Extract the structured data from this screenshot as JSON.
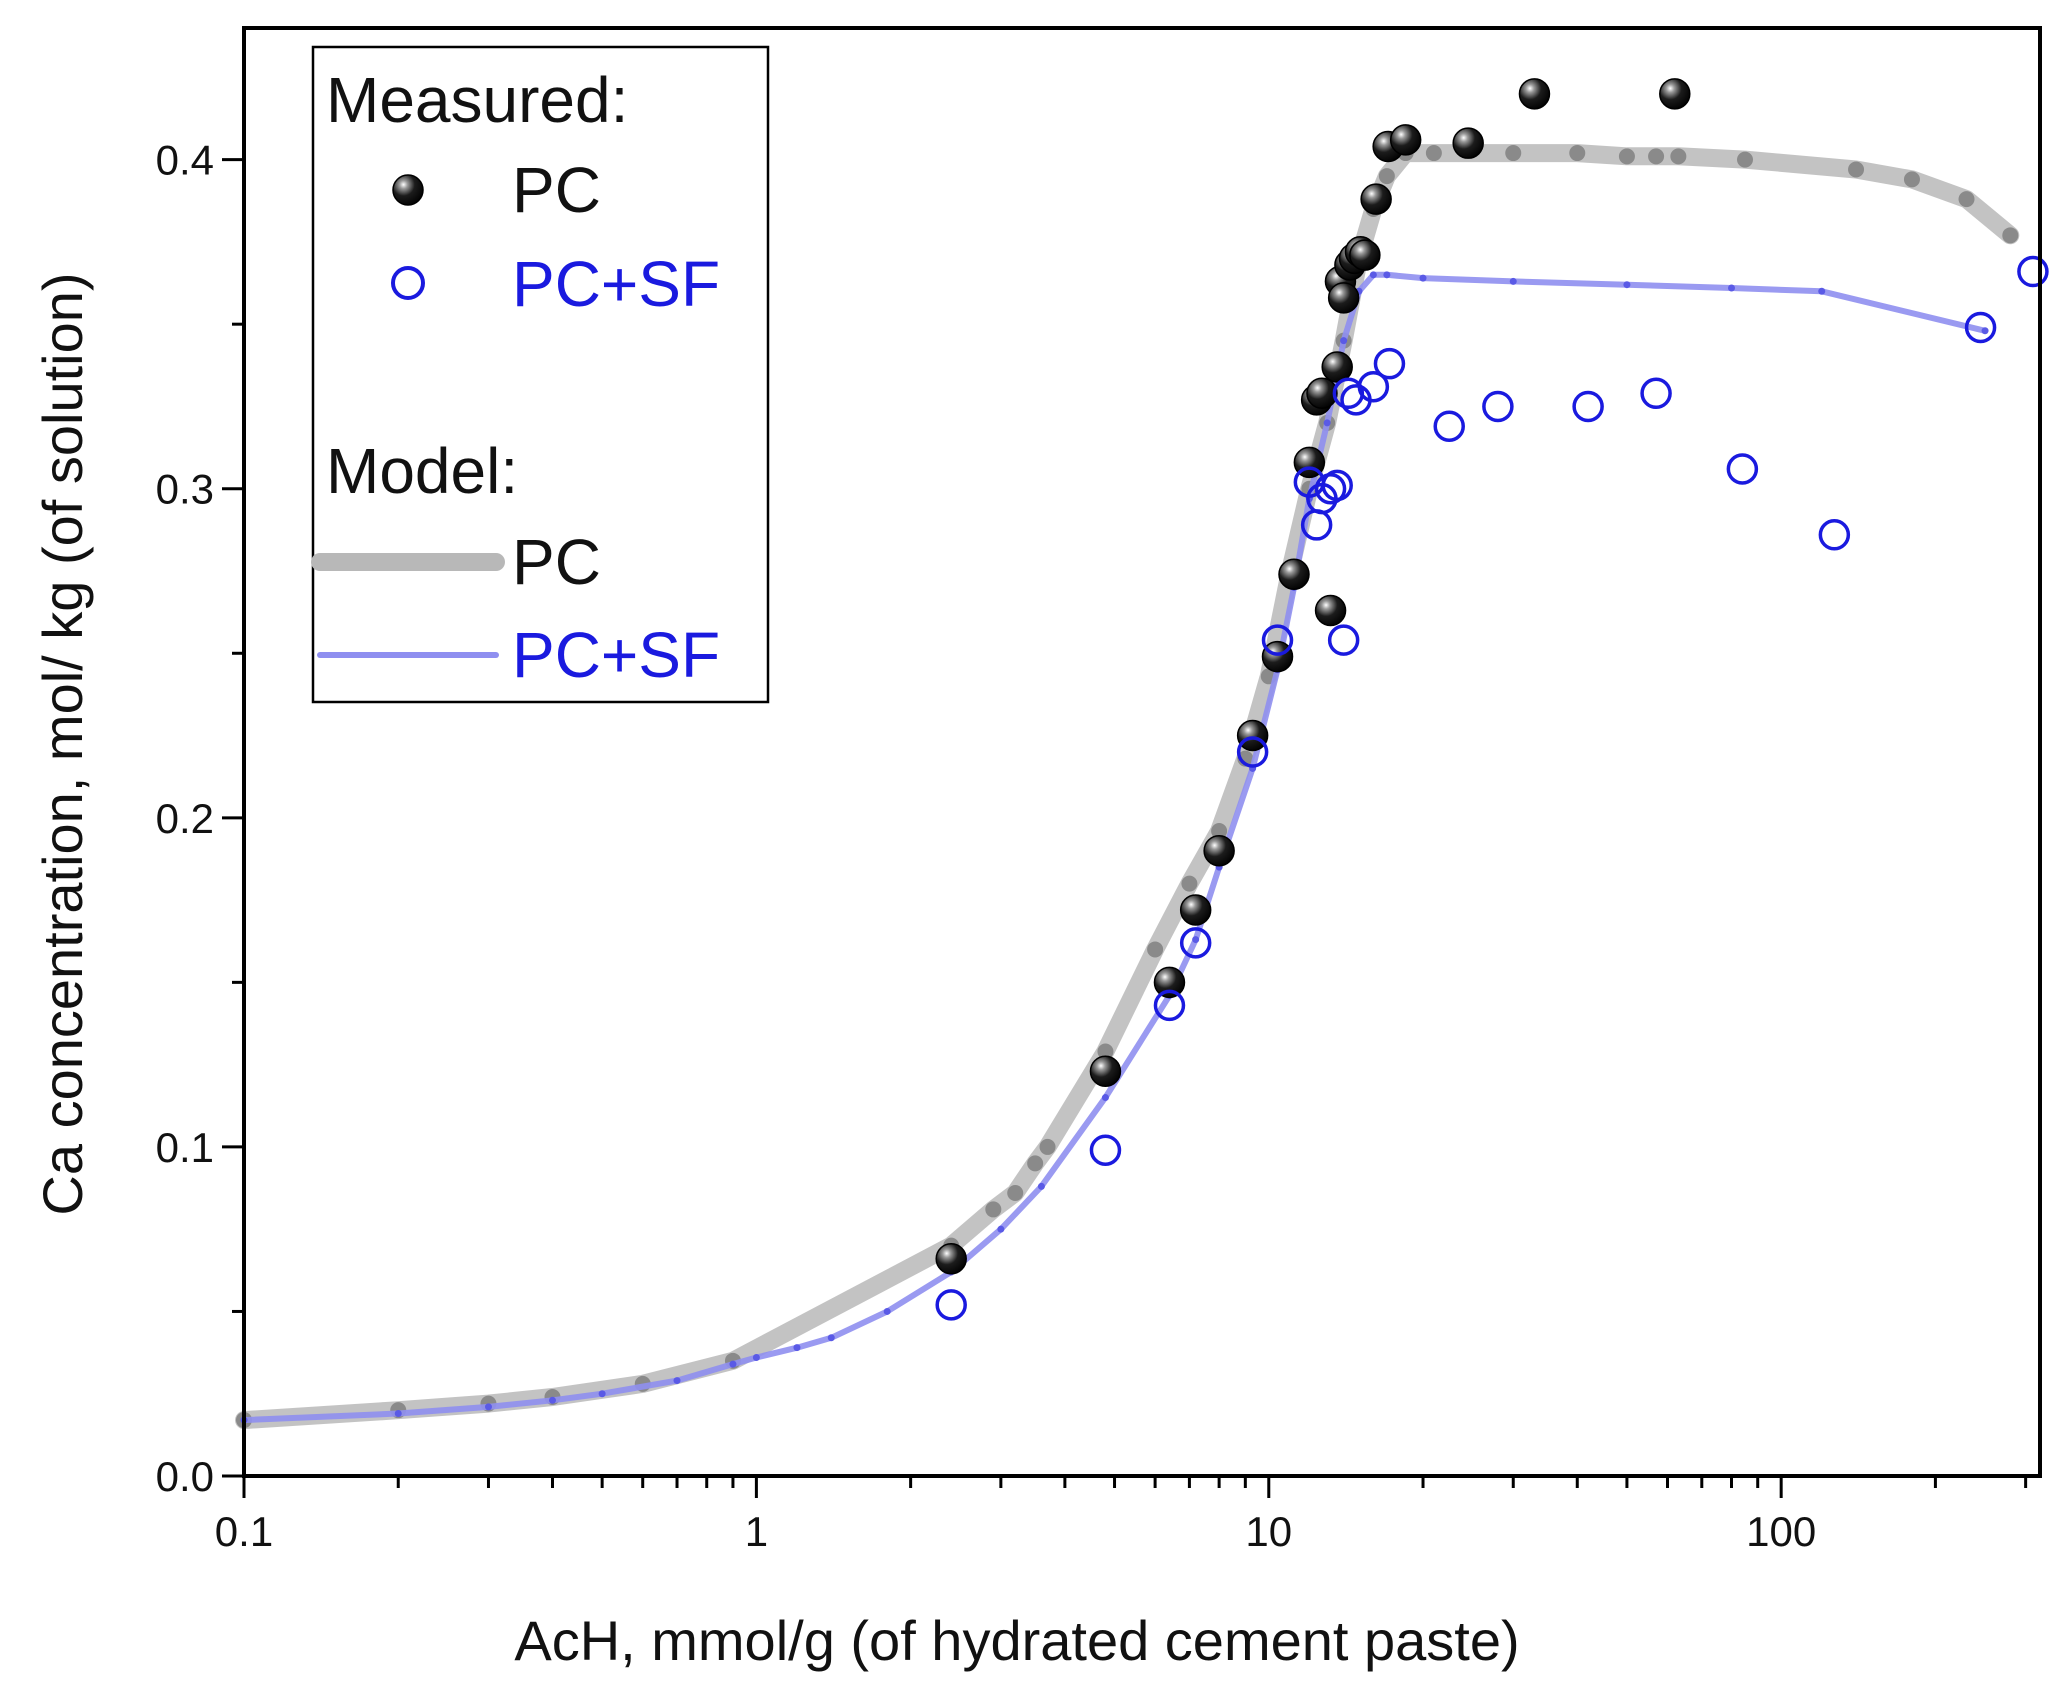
{
  "chart_data": {
    "type": "scatter",
    "xscale": "log",
    "xlabel": "AcH, mmol/g (of hydrated cement paste)",
    "ylabel": "Ca concentration, mol/ kg (of solution)",
    "xlim": [
      0.1,
      320
    ],
    "ylim": [
      0.0,
      0.44
    ],
    "xticks": [
      0.1,
      1,
      10,
      100
    ],
    "xtick_labels": [
      "0.1",
      "1",
      "10",
      "100"
    ],
    "yticks": [
      0.0,
      0.1,
      0.2,
      0.3,
      0.4
    ],
    "ytick_labels": [
      "0.0",
      "0.1",
      "0.2",
      "0.3",
      "0.4"
    ],
    "legend": {
      "position": "top-left",
      "measured_title": "Measured:",
      "model_title": "Model:",
      "entries": [
        "PC",
        "PC+SF",
        "PC",
        "PC+SF"
      ]
    },
    "colors": {
      "pc_measured": "#000000",
      "pcsf_measured": "#1a1adf",
      "pc_model": "#b8b8b8",
      "pcsf_model": "#8f8ff0"
    },
    "measured": [
      {
        "name": "PC",
        "x": [
          2.4,
          4.8,
          6.4,
          7.2,
          8.0,
          9.3,
          10.4,
          11.2,
          12.0,
          12.4,
          12.7,
          13.2,
          13.6,
          13.8,
          14.0,
          14.4,
          14.7,
          15.1,
          15.4,
          16.2,
          17.1,
          18.5,
          24.5,
          33.0,
          62.0
        ],
        "y": [
          0.066,
          0.123,
          0.15,
          0.172,
          0.19,
          0.225,
          0.249,
          0.274,
          0.308,
          0.327,
          0.329,
          0.263,
          0.337,
          0.363,
          0.358,
          0.368,
          0.37,
          0.372,
          0.371,
          0.388,
          0.404,
          0.406,
          0.405,
          0.42,
          0.42
        ]
      },
      {
        "name": "PC+SF",
        "x": [
          2.4,
          4.8,
          6.4,
          7.2,
          9.3,
          10.4,
          12.0,
          12.4,
          12.7,
          13.2,
          13.6,
          14.0,
          14.3,
          14.8,
          16.0,
          17.2,
          22.5,
          28.0,
          42.0,
          57.0,
          84.0,
          127.0,
          245.0,
          310.0
        ],
        "y": [
          0.052,
          0.099,
          0.143,
          0.162,
          0.22,
          0.254,
          0.302,
          0.289,
          0.297,
          0.3,
          0.301,
          0.254,
          0.329,
          0.327,
          0.331,
          0.338,
          0.319,
          0.325,
          0.325,
          0.329,
          0.306,
          0.286,
          0.349,
          0.366
        ]
      }
    ],
    "model": [
      {
        "name": "PC",
        "x": [
          0.1,
          0.2,
          0.3,
          0.4,
          0.6,
          0.9,
          2.4,
          2.9,
          3.2,
          3.5,
          3.7,
          4.8,
          6.0,
          7.0,
          8.0,
          9.0,
          10.0,
          11.0,
          12.0,
          13.0,
          14.0,
          15.0,
          16.0,
          17.0,
          18.5,
          21.0,
          30.0,
          40.0,
          50.0,
          57.0,
          63.0,
          85.0,
          140.0,
          180.0,
          230.0,
          280.0
        ],
        "y": [
          0.017,
          0.02,
          0.022,
          0.024,
          0.028,
          0.035,
          0.07,
          0.081,
          0.086,
          0.095,
          0.1,
          0.129,
          0.16,
          0.18,
          0.196,
          0.218,
          0.243,
          0.275,
          0.3,
          0.32,
          0.345,
          0.37,
          0.385,
          0.395,
          0.402,
          0.402,
          0.402,
          0.402,
          0.401,
          0.401,
          0.401,
          0.4,
          0.397,
          0.394,
          0.388,
          0.377
        ]
      },
      {
        "name": "PC+SF",
        "x": [
          0.1,
          0.2,
          0.3,
          0.4,
          0.5,
          0.7,
          0.9,
          1.0,
          1.2,
          1.4,
          1.8,
          2.4,
          3.0,
          3.6,
          4.8,
          6.4,
          7.2,
          8.0,
          9.3,
          10.4,
          11.2,
          12.0,
          13.0,
          14.0,
          15.0,
          16.0,
          17.0,
          20.0,
          30.0,
          50.0,
          80.0,
          120.0,
          250.0
        ],
        "y": [
          0.017,
          0.019,
          0.021,
          0.023,
          0.025,
          0.029,
          0.034,
          0.036,
          0.039,
          0.042,
          0.05,
          0.062,
          0.075,
          0.088,
          0.115,
          0.146,
          0.163,
          0.185,
          0.215,
          0.245,
          0.27,
          0.297,
          0.32,
          0.345,
          0.36,
          0.365,
          0.365,
          0.364,
          0.363,
          0.362,
          0.361,
          0.36,
          0.348
        ]
      }
    ]
  }
}
